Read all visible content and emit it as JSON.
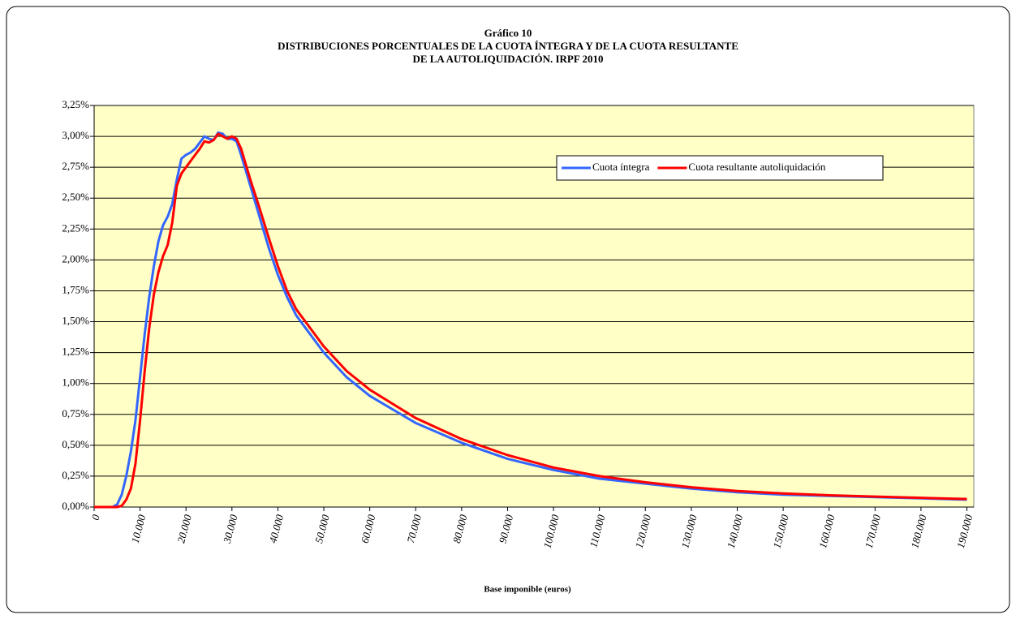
{
  "chart_data": {
    "type": "line",
    "title": "Gráfico 10",
    "subtitle": [
      "DISTRIBUCIONES PORCENTUALES DE LA CUOTA ÍNTEGRA Y DE LA CUOTA RESULTANTE",
      "DE LA AUTOLIQUIDACIÓN. IRPF 2010"
    ],
    "x_label": "Base imponible (euros)",
    "x": [
      0,
      4000,
      5000,
      6000,
      7000,
      8000,
      9000,
      10000,
      11000,
      12000,
      13000,
      14000,
      15000,
      16000,
      17000,
      18000,
      19000,
      20000,
      21000,
      22000,
      23000,
      24000,
      25000,
      26000,
      27000,
      28000,
      29000,
      30000,
      31000,
      32000,
      34000,
      36000,
      38000,
      40000,
      42000,
      44000,
      46000,
      50000,
      55000,
      60000,
      70000,
      80000,
      90000,
      100000,
      110000,
      120000,
      130000,
      140000,
      150000,
      160000,
      170000,
      180000,
      190000
    ],
    "series": [
      {
        "name": "Cuota íntegra",
        "color": "#3366ff",
        "values": [
          0,
          0,
          0.02,
          0.1,
          0.25,
          0.45,
          0.7,
          1.05,
          1.4,
          1.7,
          1.95,
          2.15,
          2.28,
          2.35,
          2.45,
          2.65,
          2.82,
          2.85,
          2.87,
          2.9,
          2.95,
          3.0,
          2.98,
          2.97,
          3.03,
          3.02,
          2.98,
          2.98,
          2.96,
          2.85,
          2.6,
          2.35,
          2.1,
          1.88,
          1.7,
          1.55,
          1.45,
          1.25,
          1.05,
          0.9,
          0.68,
          0.52,
          0.39,
          0.3,
          0.23,
          0.19,
          0.15,
          0.12,
          0.1,
          0.09,
          0.08,
          0.07,
          0.06
        ]
      },
      {
        "name": "Cuota resultante autoliquidación",
        "color": "#ff0000",
        "values": [
          0,
          0,
          0,
          0.01,
          0.06,
          0.15,
          0.35,
          0.7,
          1.1,
          1.45,
          1.72,
          1.9,
          2.03,
          2.12,
          2.3,
          2.6,
          2.7,
          2.75,
          2.8,
          2.85,
          2.9,
          2.96,
          2.95,
          2.97,
          3.02,
          3.0,
          2.98,
          3.0,
          2.98,
          2.9,
          2.65,
          2.42,
          2.18,
          1.95,
          1.75,
          1.6,
          1.5,
          1.3,
          1.1,
          0.95,
          0.72,
          0.55,
          0.42,
          0.32,
          0.25,
          0.2,
          0.16,
          0.13,
          0.11,
          0.095,
          0.085,
          0.075,
          0.065
        ]
      }
    ],
    "xlim": [
      0,
      191500
    ],
    "xticks": [
      0,
      {
        "value": 10000,
        "label": "10.000"
      },
      {
        "value": 20000,
        "label": "20.000"
      },
      {
        "value": 30000,
        "label": "30.000"
      },
      {
        "value": 40000,
        "label": "40.000"
      },
      {
        "value": 50000,
        "label": "50.000"
      },
      {
        "value": 60000,
        "label": "60.000"
      },
      {
        "value": 70000,
        "label": "70.000"
      },
      {
        "value": 80000,
        "label": "80.000"
      },
      {
        "value": 90000,
        "label": "90.000"
      },
      {
        "value": 100000,
        "label": "100.000"
      },
      {
        "value": 110000,
        "label": "110.000"
      },
      {
        "value": 120000,
        "label": "120.000"
      },
      {
        "value": 130000,
        "label": "130.000"
      },
      {
        "value": 140000,
        "label": "140.000"
      },
      {
        "value": 150000,
        "label": "150.000"
      },
      {
        "value": 160000,
        "label": "160.000"
      },
      {
        "value": 170000,
        "label": "170.000"
      },
      {
        "value": 180000,
        "label": "180.000"
      },
      {
        "value": 190000,
        "label": "190.000"
      }
    ],
    "ylim": [
      0,
      3.25
    ],
    "yticks": [
      {
        "value": 0,
        "label": "0,00%"
      },
      {
        "value": 0.25,
        "label": "0,25%"
      },
      {
        "value": 0.5,
        "label": "0,50%"
      },
      {
        "value": 0.75,
        "label": "0,75%"
      },
      {
        "value": 1,
        "label": "1,00%"
      },
      {
        "value": 1.25,
        "label": "1,25%"
      },
      {
        "value": 1.5,
        "label": "1,50%"
      },
      {
        "value": 1.75,
        "label": "1,75%"
      },
      {
        "value": 2,
        "label": "2,00%"
      },
      {
        "value": 2.25,
        "label": "2,25%"
      },
      {
        "value": 2.5,
        "label": "2,50%"
      },
      {
        "value": 2.75,
        "label": "2,75%"
      },
      {
        "value": 3,
        "label": "3,00%"
      },
      {
        "value": 3.25,
        "label": "3,25%"
      }
    ],
    "grid": true,
    "plot_background": "#ffffc6",
    "legend": "upper right"
  }
}
